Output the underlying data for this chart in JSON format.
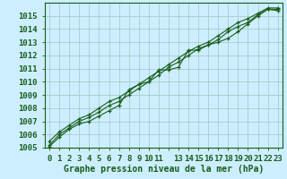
{
  "title": "Graphe pression niveau de la mer (hPa)",
  "bg_color": "#cceeff",
  "grid_color": "#aacccc",
  "line_color": "#1a5c1a",
  "xlim": [
    -0.5,
    23.5
  ],
  "ylim": [
    1005,
    1016
  ],
  "yticks": [
    1005,
    1006,
    1007,
    1008,
    1009,
    1010,
    1011,
    1012,
    1013,
    1014,
    1015
  ],
  "series1": [
    1005.2,
    1006.0,
    1006.5,
    1007.0,
    1007.3,
    1007.7,
    1008.2,
    1008.5,
    1009.0,
    1009.5,
    1010.0,
    1010.5,
    1011.1,
    1011.5,
    1012.0,
    1012.5,
    1012.8,
    1013.2,
    1013.8,
    1014.2,
    1014.5,
    1015.1,
    1015.5,
    1015.5
  ],
  "series2": [
    1005.1,
    1005.8,
    1006.4,
    1006.8,
    1007.0,
    1007.4,
    1007.8,
    1008.2,
    1009.4,
    1009.8,
    1010.0,
    1010.9,
    1010.9,
    1011.1,
    1012.4,
    1012.4,
    1012.8,
    1013.0,
    1013.3,
    1013.8,
    1014.4,
    1015.0,
    1015.5,
    1015.4
  ],
  "series3": [
    1005.5,
    1006.2,
    1006.7,
    1007.2,
    1007.5,
    1008.0,
    1008.5,
    1008.8,
    1009.3,
    1009.8,
    1010.3,
    1010.8,
    1011.3,
    1011.8,
    1012.3,
    1012.7,
    1013.0,
    1013.5,
    1014.0,
    1014.5,
    1014.8,
    1015.2,
    1015.6,
    1015.6
  ],
  "tick_fontsize": 6.5,
  "title_fontsize": 7.0
}
